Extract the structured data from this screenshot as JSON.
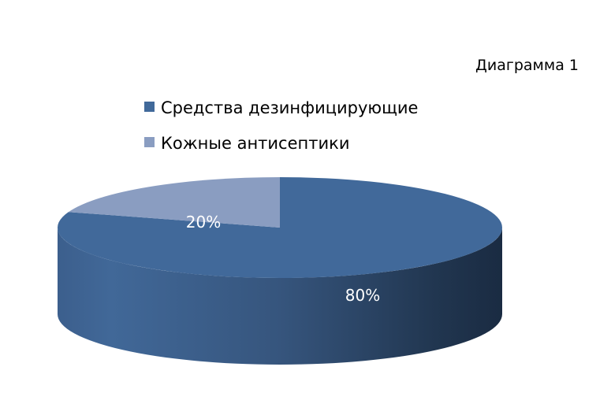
{
  "caption": "Диаграмма 1",
  "chart_data": {
    "type": "pie",
    "style": "3d",
    "categories": [
      "Средства дезинфицирующие",
      "Кожные антисептики"
    ],
    "values": [
      80,
      20
    ],
    "data_labels": [
      "80%",
      "20%"
    ],
    "colors": [
      "#41699a",
      "#8a9dc1"
    ],
    "legend_position": "top"
  }
}
